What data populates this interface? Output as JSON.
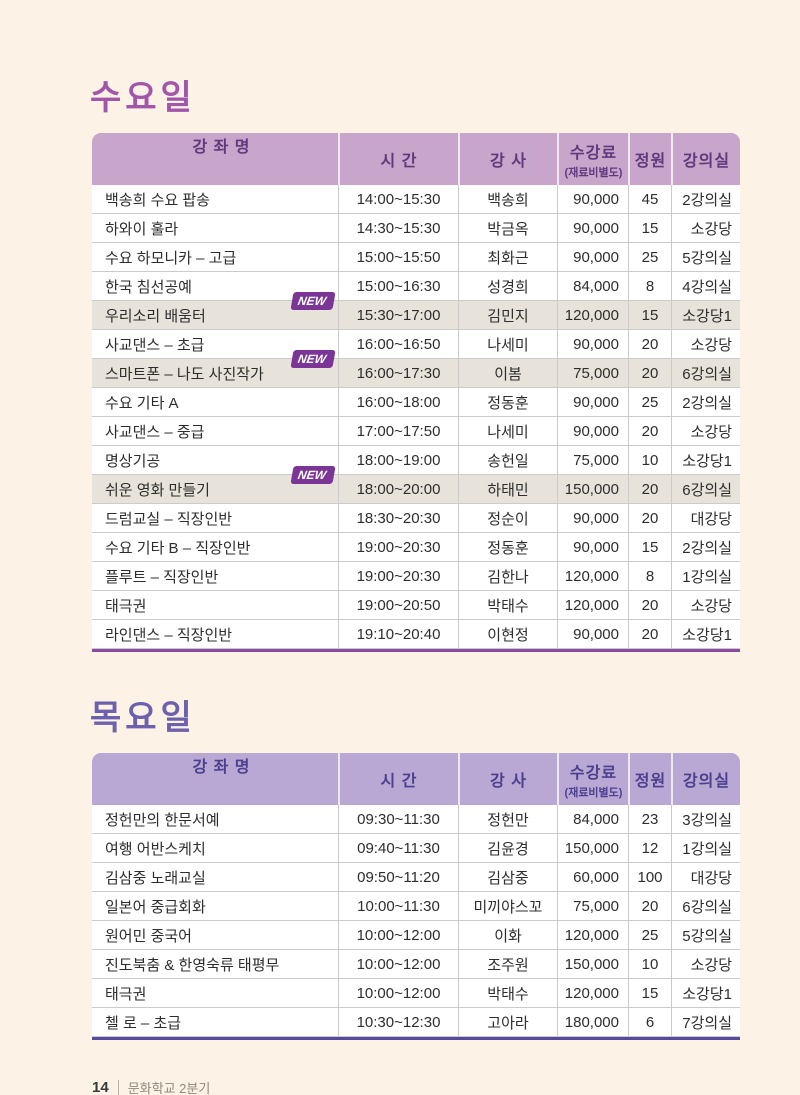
{
  "page": {
    "background": "#fcf2e6"
  },
  "badge_label": "NEW",
  "columns": {
    "course": "강 좌 명",
    "time": "시 간",
    "instructor": "강 사",
    "fee_line1": "수강료",
    "fee_line2": "(재료비별도)",
    "capacity": "정원",
    "room": "강의실"
  },
  "tables": [
    {
      "title": "수요일",
      "accent": {
        "title_color": "#a156a9",
        "header_bg": "#c8a5ca",
        "header_text": "#5e3a7d",
        "bottom_border": "#8c4b9d"
      },
      "rows": [
        {
          "course": "백송희 수요 팝송",
          "new": false,
          "time": "14:00~15:30",
          "instructor": "백송희",
          "fee": "90,000",
          "capacity": "45",
          "room": "2강의실"
        },
        {
          "course": "하와이 훌라",
          "new": false,
          "time": "14:30~15:30",
          "instructor": "박금옥",
          "fee": "90,000",
          "capacity": "15",
          "room": "소강당"
        },
        {
          "course": "수요 하모니카 – 고급",
          "new": false,
          "time": "15:00~15:50",
          "instructor": "최화근",
          "fee": "90,000",
          "capacity": "25",
          "room": "5강의실"
        },
        {
          "course": "한국 침선공예",
          "new": false,
          "time": "15:00~16:30",
          "instructor": "성경희",
          "fee": "84,000",
          "capacity": "8",
          "room": "4강의실"
        },
        {
          "course": "우리소리 배움터",
          "new": true,
          "time": "15:30~17:00",
          "instructor": "김민지",
          "fee": "120,000",
          "capacity": "15",
          "room": "소강당1"
        },
        {
          "course": "사교댄스 – 초급",
          "new": false,
          "time": "16:00~16:50",
          "instructor": "나세미",
          "fee": "90,000",
          "capacity": "20",
          "room": "소강당"
        },
        {
          "course": "스마트폰 – 나도 사진작가",
          "new": true,
          "time": "16:00~17:30",
          "instructor": "이봄",
          "fee": "75,000",
          "capacity": "20",
          "room": "6강의실"
        },
        {
          "course": "수요 기타 A",
          "new": false,
          "time": "16:00~18:00",
          "instructor": "정동훈",
          "fee": "90,000",
          "capacity": "25",
          "room": "2강의실"
        },
        {
          "course": "사교댄스 – 중급",
          "new": false,
          "time": "17:00~17:50",
          "instructor": "나세미",
          "fee": "90,000",
          "capacity": "20",
          "room": "소강당"
        },
        {
          "course": "명상기공",
          "new": false,
          "time": "18:00~19:00",
          "instructor": "송헌일",
          "fee": "75,000",
          "capacity": "10",
          "room": "소강당1"
        },
        {
          "course": "쉬운 영화 만들기",
          "new": true,
          "time": "18:00~20:00",
          "instructor": "하태민",
          "fee": "150,000",
          "capacity": "20",
          "room": "6강의실"
        },
        {
          "course": "드럼교실 – 직장인반",
          "new": false,
          "time": "18:30~20:30",
          "instructor": "정순이",
          "fee": "90,000",
          "capacity": "20",
          "room": "대강당"
        },
        {
          "course": "수요 기타 B – 직장인반",
          "new": false,
          "time": "19:00~20:30",
          "instructor": "정동훈",
          "fee": "90,000",
          "capacity": "15",
          "room": "2강의실"
        },
        {
          "course": "플루트 – 직장인반",
          "new": false,
          "time": "19:00~20:30",
          "instructor": "김한나",
          "fee": "120,000",
          "capacity": "8",
          "room": "1강의실"
        },
        {
          "course": "태극권",
          "new": false,
          "time": "19:00~20:50",
          "instructor": "박태수",
          "fee": "120,000",
          "capacity": "20",
          "room": "소강당"
        },
        {
          "course": "라인댄스 – 직장인반",
          "new": false,
          "time": "19:10~20:40",
          "instructor": "이현정",
          "fee": "90,000",
          "capacity": "20",
          "room": "소강당1"
        }
      ]
    },
    {
      "title": "목요일",
      "accent": {
        "title_color": "#6d60ac",
        "header_bg": "#b9a8d4",
        "header_text": "#4c3f8d",
        "bottom_border": "#584a9e"
      },
      "rows": [
        {
          "course": "정헌만의 한문서예",
          "new": false,
          "time": "09:30~11:30",
          "instructor": "정헌만",
          "fee": "84,000",
          "capacity": "23",
          "room": "3강의실"
        },
        {
          "course": "여행 어반스케치",
          "new": false,
          "time": "09:40~11:30",
          "instructor": "김윤경",
          "fee": "150,000",
          "capacity": "12",
          "room": "1강의실"
        },
        {
          "course": "김삼중 노래교실",
          "new": false,
          "time": "09:50~11:20",
          "instructor": "김삼중",
          "fee": "60,000",
          "capacity": "100",
          "room": "대강당"
        },
        {
          "course": "일본어 중급회화",
          "new": false,
          "time": "10:00~11:30",
          "instructor": "미끼야스꼬",
          "fee": "75,000",
          "capacity": "20",
          "room": "6강의실"
        },
        {
          "course": "원어민 중국어",
          "new": false,
          "time": "10:00~12:00",
          "instructor": "이화",
          "fee": "120,000",
          "capacity": "25",
          "room": "5강의실"
        },
        {
          "course": "진도북춤 & 한영숙류 태평무",
          "new": false,
          "time": "10:00~12:00",
          "instructor": "조주원",
          "fee": "150,000",
          "capacity": "10",
          "room": "소강당"
        },
        {
          "course": "태극권",
          "new": false,
          "time": "10:00~12:00",
          "instructor": "박태수",
          "fee": "120,000",
          "capacity": "15",
          "room": "소강당1"
        },
        {
          "course": "첼 로 – 초급",
          "new": false,
          "time": "10:30~12:30",
          "instructor": "고아라",
          "fee": "180,000",
          "capacity": "6",
          "room": "7강의실"
        }
      ]
    }
  ],
  "footer": {
    "page_number": "14",
    "booklet_label": "문화학교 2분기"
  }
}
